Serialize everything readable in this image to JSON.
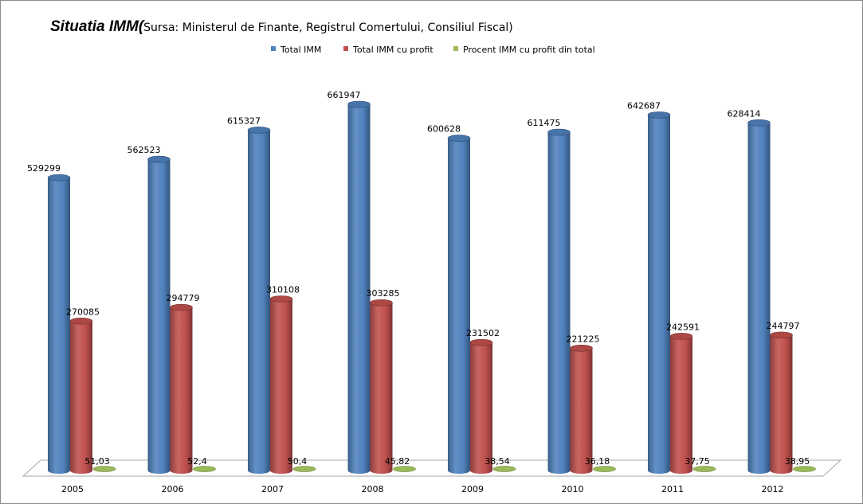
{
  "chart_data": {
    "type": "bar",
    "title": "Situatia IMM",
    "title_open_paren": "(",
    "subtitle": "Sursa: Ministerul de Finante, Registrul Comertului, Consiliul Fiscal)",
    "xlabel": "",
    "ylabel": "",
    "ylim": [
      0,
      700000
    ],
    "legend_position": "top",
    "grid": false,
    "categories": [
      "2005",
      "2006",
      "2007",
      "2008",
      "2009",
      "2010",
      "2011",
      "2012"
    ],
    "series": [
      {
        "name": "Total IMM",
        "color": "#4f81bd",
        "values": [
          529299,
          562523,
          615327,
          661947,
          600628,
          611475,
          642687,
          628414
        ],
        "labels": [
          "529299",
          "562523",
          "615327",
          "661947",
          "600628",
          "611475",
          "642687",
          "628414"
        ]
      },
      {
        "name": "Total IMM cu profit",
        "color": "#c0504d",
        "values": [
          270085,
          294779,
          310108,
          303285,
          231502,
          221225,
          242591,
          244797
        ],
        "labels": [
          "270085",
          "294779",
          "310108",
          "303285",
          "231502",
          "221225",
          "242591",
          "244797"
        ]
      },
      {
        "name": "Procent IMM cu profit din total",
        "color": "#9bbb59",
        "values": [
          51.03,
          52.4,
          50.4,
          45.82,
          38.54,
          36.18,
          37.75,
          38.95
        ],
        "labels": [
          "51,03",
          "52,4",
          "50,4",
          "45,82",
          "38,54",
          "36,18",
          "37,75",
          "38,95"
        ]
      }
    ]
  }
}
